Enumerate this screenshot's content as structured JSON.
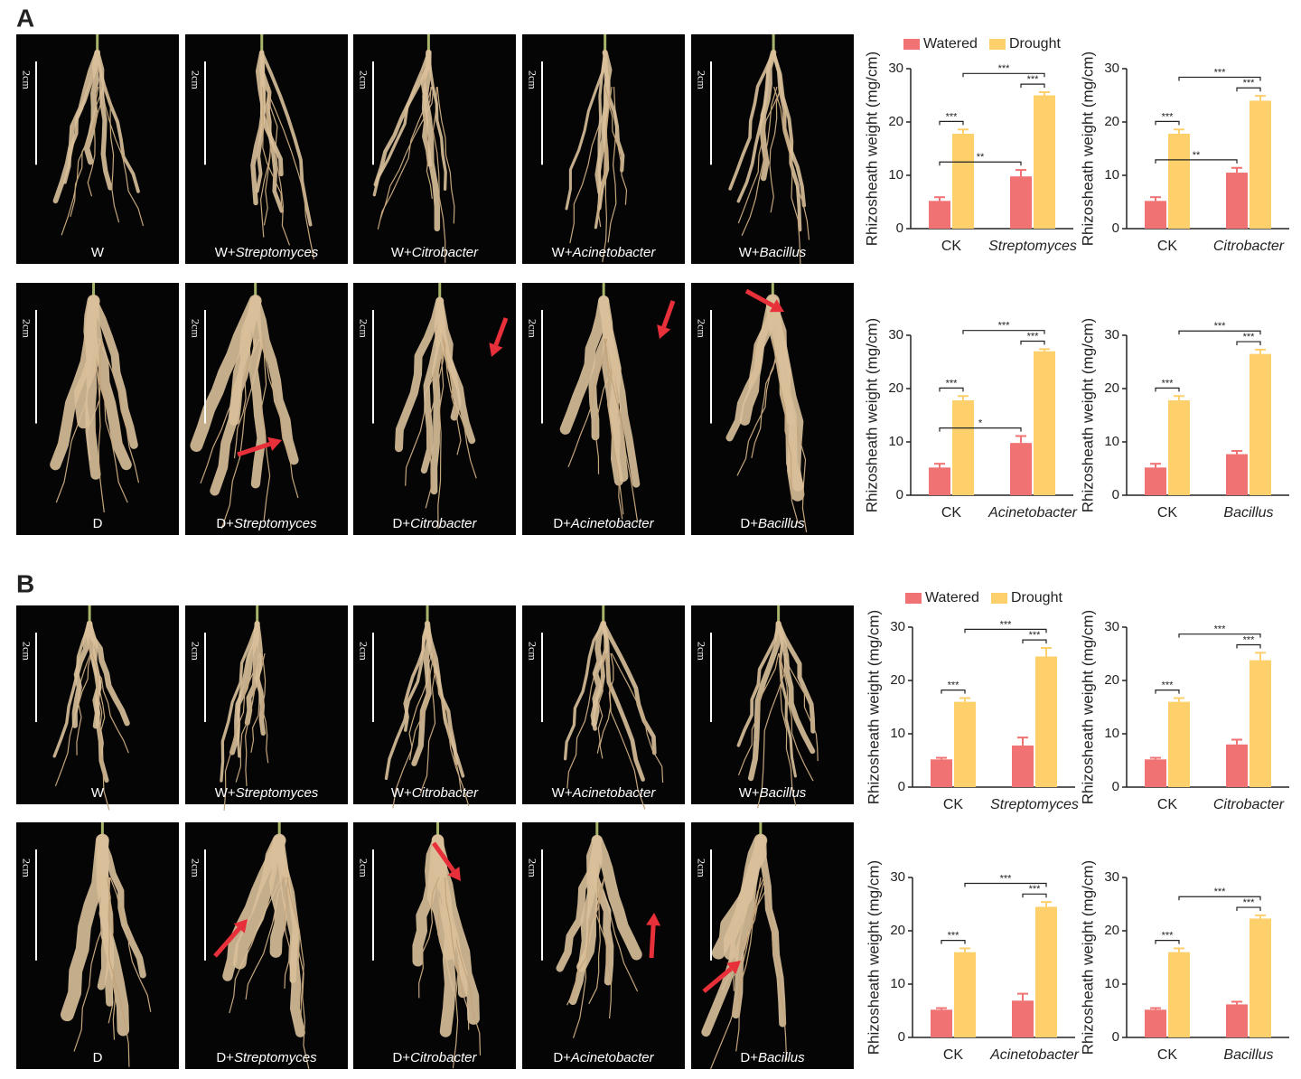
{
  "panels": [
    {
      "label": "A",
      "photo_rows": [
        [
          {
            "plain": "W"
          },
          {
            "plain": "W+",
            "italic": "Streptomyces"
          },
          {
            "plain": "W+",
            "italic": "Citrobacter"
          },
          {
            "plain": "W+",
            "italic": "Acinetobacter"
          },
          {
            "plain": "W+",
            "italic": "Bacillus"
          }
        ],
        [
          {
            "plain": "D"
          },
          {
            "plain": "D+",
            "italic": "Streptomyces"
          },
          {
            "plain": "D+",
            "italic": "Citrobacter"
          },
          {
            "plain": "D+",
            "italic": "Acinetobacter"
          },
          {
            "plain": "D+",
            "italic": "Bacillus"
          }
        ]
      ]
    },
    {
      "label": "B",
      "photo_rows": [
        [
          {
            "plain": "W"
          },
          {
            "plain": "W+",
            "italic": "Streptomyces"
          },
          {
            "plain": "W+",
            "italic": "Citrobacter"
          },
          {
            "plain": "W+",
            "italic": "Acinetobacter"
          },
          {
            "plain": "W+",
            "italic": "Bacillus"
          }
        ],
        [
          {
            "plain": "D"
          },
          {
            "plain": "D+",
            "italic": "Streptomyces"
          },
          {
            "plain": "D+",
            "italic": "Citrobacter"
          },
          {
            "plain": "D+",
            "italic": "Acinetobacter"
          },
          {
            "plain": "D+",
            "italic": "Bacillus"
          }
        ]
      ]
    }
  ],
  "scale_label": "2cm",
  "chart_data": [
    {
      "type": "bar",
      "categories": [
        "CK",
        "Streptomyces"
      ],
      "ylabel": "Rhizosheath weight (mg/cm)",
      "ylim": [
        0,
        30
      ],
      "yticks": [
        0,
        10,
        20,
        30
      ],
      "legend": true,
      "series": [
        {
          "name": "Watered",
          "color": "#f07272",
          "values": [
            5.2,
            9.8
          ],
          "errors": [
            0.7,
            1.2
          ]
        },
        {
          "name": "Drought",
          "color": "#fdd06c",
          "values": [
            17.8,
            25
          ],
          "errors": [
            0.8,
            0.6
          ]
        }
      ],
      "significance": [
        {
          "label": "***",
          "from": [
            0,
            0
          ],
          "to": [
            0,
            1
          ]
        },
        {
          "label": "**",
          "from": [
            0,
            0
          ],
          "to": [
            1,
            0
          ]
        },
        {
          "label": "***",
          "from": [
            1,
            0
          ],
          "to": [
            1,
            1
          ]
        },
        {
          "label": "***",
          "from": [
            0,
            1
          ],
          "to": [
            1,
            1
          ]
        }
      ]
    },
    {
      "type": "bar",
      "categories": [
        "CK",
        "Citrobacter"
      ],
      "ylabel": "Rhizosheath weight (mg/cm)",
      "ylim": [
        0,
        30
      ],
      "yticks": [
        0,
        10,
        20,
        30
      ],
      "legend": false,
      "series": [
        {
          "name": "Watered",
          "color": "#f07272",
          "values": [
            5.2,
            10.5
          ],
          "errors": [
            0.7,
            0.9
          ]
        },
        {
          "name": "Drought",
          "color": "#fdd06c",
          "values": [
            17.8,
            24
          ],
          "errors": [
            0.8,
            0.9
          ]
        }
      ],
      "significance": [
        {
          "label": "***",
          "from": [
            0,
            0
          ],
          "to": [
            0,
            1
          ]
        },
        {
          "label": "**",
          "from": [
            0,
            0
          ],
          "to": [
            1,
            0
          ]
        },
        {
          "label": "***",
          "from": [
            1,
            0
          ],
          "to": [
            1,
            1
          ]
        },
        {
          "label": "***",
          "from": [
            0,
            1
          ],
          "to": [
            1,
            1
          ]
        }
      ]
    },
    {
      "type": "bar",
      "categories": [
        "CK",
        "Acinetobacter"
      ],
      "ylabel": "Rhizosheath weight (mg/cm)",
      "ylim": [
        0,
        30
      ],
      "yticks": [
        0,
        10,
        20,
        30
      ],
      "legend": false,
      "series": [
        {
          "name": "Watered",
          "color": "#f07272",
          "values": [
            5.2,
            9.8
          ],
          "errors": [
            0.7,
            1.3
          ]
        },
        {
          "name": "Drought",
          "color": "#fdd06c",
          "values": [
            17.8,
            27
          ],
          "errors": [
            0.8,
            0.4
          ]
        }
      ],
      "significance": [
        {
          "label": "***",
          "from": [
            0,
            0
          ],
          "to": [
            0,
            1
          ]
        },
        {
          "label": "*",
          "from": [
            0,
            0
          ],
          "to": [
            1,
            0
          ]
        },
        {
          "label": "***",
          "from": [
            1,
            0
          ],
          "to": [
            1,
            1
          ]
        },
        {
          "label": "***",
          "from": [
            0,
            1
          ],
          "to": [
            1,
            1
          ]
        }
      ]
    },
    {
      "type": "bar",
      "categories": [
        "CK",
        "Bacillus"
      ],
      "ylabel": "Rhizosheath weight (mg/cm)",
      "ylim": [
        0,
        30
      ],
      "yticks": [
        0,
        10,
        20,
        30
      ],
      "legend": false,
      "series": [
        {
          "name": "Watered",
          "color": "#f07272",
          "values": [
            5.2,
            7.7
          ],
          "errors": [
            0.7,
            0.6
          ]
        },
        {
          "name": "Drought",
          "color": "#fdd06c",
          "values": [
            17.8,
            26.5
          ],
          "errors": [
            0.8,
            0.8
          ]
        }
      ],
      "significance": [
        {
          "label": "***",
          "from": [
            0,
            0
          ],
          "to": [
            0,
            1
          ]
        },
        {
          "label": "***",
          "from": [
            1,
            0
          ],
          "to": [
            1,
            1
          ]
        },
        {
          "label": "***",
          "from": [
            0,
            1
          ],
          "to": [
            1,
            1
          ]
        }
      ]
    },
    {
      "type": "bar",
      "categories": [
        "CK",
        "Streptomyces"
      ],
      "ylabel": "Rhizosheath weight (mg/cm)",
      "ylim": [
        0,
        30
      ],
      "yticks": [
        0,
        10,
        20,
        30
      ],
      "legend": true,
      "series": [
        {
          "name": "Watered",
          "color": "#f07272",
          "values": [
            5.2,
            7.8
          ],
          "errors": [
            0.3,
            1.5
          ]
        },
        {
          "name": "Drought",
          "color": "#fdd06c",
          "values": [
            16,
            24.5
          ],
          "errors": [
            0.7,
            1.6
          ]
        }
      ],
      "significance": [
        {
          "label": "***",
          "from": [
            0,
            0
          ],
          "to": [
            0,
            1
          ]
        },
        {
          "label": "***",
          "from": [
            1,
            0
          ],
          "to": [
            1,
            1
          ]
        },
        {
          "label": "***",
          "from": [
            0,
            1
          ],
          "to": [
            1,
            1
          ]
        }
      ]
    },
    {
      "type": "bar",
      "categories": [
        "CK",
        "Citrobacter"
      ],
      "ylabel": "Rhizosheath weight (mg/cm)",
      "ylim": [
        0,
        30
      ],
      "yticks": [
        0,
        10,
        20,
        30
      ],
      "legend": false,
      "series": [
        {
          "name": "Watered",
          "color": "#f07272",
          "values": [
            5.2,
            8
          ],
          "errors": [
            0.3,
            0.9
          ]
        },
        {
          "name": "Drought",
          "color": "#fdd06c",
          "values": [
            16,
            23.8
          ],
          "errors": [
            0.7,
            1.4
          ]
        }
      ],
      "significance": [
        {
          "label": "***",
          "from": [
            0,
            0
          ],
          "to": [
            0,
            1
          ]
        },
        {
          "label": "***",
          "from": [
            1,
            0
          ],
          "to": [
            1,
            1
          ]
        },
        {
          "label": "***",
          "from": [
            0,
            1
          ],
          "to": [
            1,
            1
          ]
        }
      ]
    },
    {
      "type": "bar",
      "categories": [
        "CK",
        "Acinetobacter"
      ],
      "ylabel": "Rhizosheath weight (mg/cm)",
      "ylim": [
        0,
        30
      ],
      "yticks": [
        0,
        10,
        20,
        30
      ],
      "legend": false,
      "series": [
        {
          "name": "Watered",
          "color": "#f07272",
          "values": [
            5.2,
            6.9
          ],
          "errors": [
            0.3,
            1.3
          ]
        },
        {
          "name": "Drought",
          "color": "#fdd06c",
          "values": [
            16,
            24.5
          ],
          "errors": [
            0.7,
            0.9
          ]
        }
      ],
      "significance": [
        {
          "label": "***",
          "from": [
            0,
            0
          ],
          "to": [
            0,
            1
          ]
        },
        {
          "label": "***",
          "from": [
            1,
            0
          ],
          "to": [
            1,
            1
          ]
        },
        {
          "label": "***",
          "from": [
            0,
            1
          ],
          "to": [
            1,
            1
          ]
        }
      ]
    },
    {
      "type": "bar",
      "categories": [
        "CK",
        "Bacillus"
      ],
      "ylabel": "Rhizosheath weight (mg/cm)",
      "ylim": [
        0,
        30
      ],
      "yticks": [
        0,
        10,
        20,
        30
      ],
      "legend": false,
      "series": [
        {
          "name": "Watered",
          "color": "#f07272",
          "values": [
            5.2,
            6.2
          ],
          "errors": [
            0.3,
            0.5
          ]
        },
        {
          "name": "Drought",
          "color": "#fdd06c",
          "values": [
            16,
            22.3
          ],
          "errors": [
            0.7,
            0.6
          ]
        }
      ],
      "significance": [
        {
          "label": "***",
          "from": [
            0,
            0
          ],
          "to": [
            0,
            1
          ]
        },
        {
          "label": "***",
          "from": [
            1,
            0
          ],
          "to": [
            1,
            1
          ]
        },
        {
          "label": "***",
          "from": [
            0,
            1
          ],
          "to": [
            1,
            1
          ]
        }
      ]
    }
  ]
}
